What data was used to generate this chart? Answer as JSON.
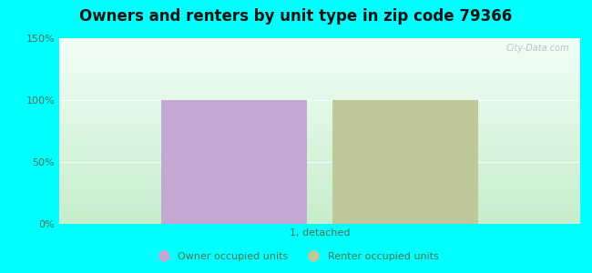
{
  "title": "Owners and renters by unit type in zip code 79366",
  "categories": [
    "1, detached"
  ],
  "owner_values": [
    100
  ],
  "renter_values": [
    100
  ],
  "owner_color": "#c4a8d4",
  "renter_color": "#bec898",
  "ylim": [
    0,
    150
  ],
  "yticks": [
    0,
    50,
    100,
    150
  ],
  "ytick_labels": [
    "0%",
    "50%",
    "100%",
    "150%"
  ],
  "background_color": "#00FFFF",
  "legend_owner": "Owner occupied units",
  "legend_renter": "Renter occupied units",
  "watermark": "City-Data.com",
  "title_fontsize": 12,
  "bar_width": 0.28,
  "bar_gap": 0.05,
  "xlabel_fontsize": 8,
  "tick_color": "#507050",
  "label_color": "#507050"
}
